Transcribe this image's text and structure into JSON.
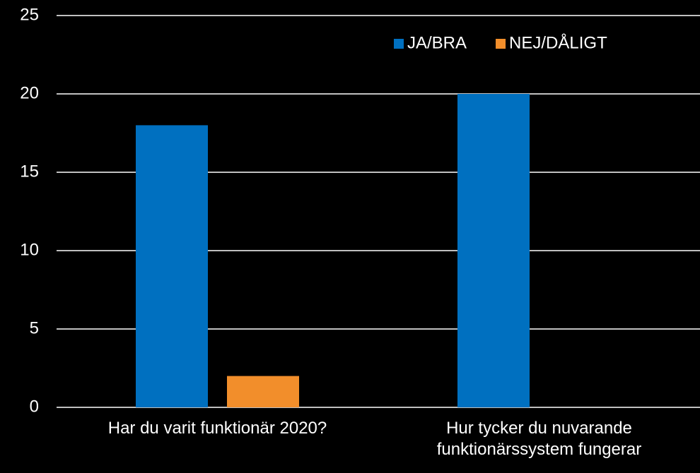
{
  "chart_data": {
    "type": "bar",
    "categories": [
      "Har du varit funktionär 2020?",
      "Hur tycker du nuvarande funktionärssystem fungerar"
    ],
    "series": [
      {
        "name": "JA/BRA",
        "color": "#0070c0",
        "values": [
          18,
          20
        ]
      },
      {
        "name": "NEJ/DÅLIGT",
        "color": "#f28e2b",
        "values": [
          2,
          0
        ]
      }
    ],
    "ylim": [
      0,
      25
    ],
    "yticks": [
      0,
      5,
      10,
      15,
      20,
      25
    ],
    "grid": true,
    "legend": "top-right"
  }
}
